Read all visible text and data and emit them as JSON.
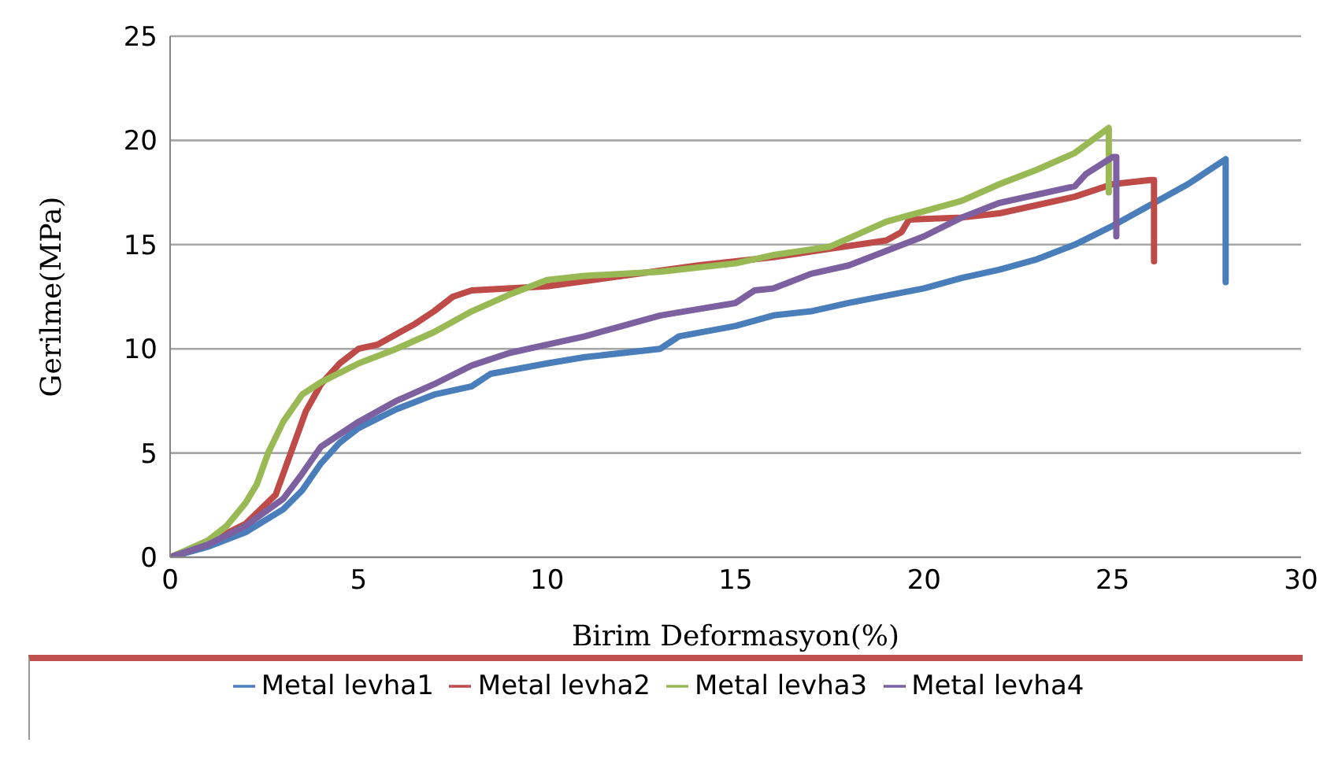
{
  "chart_data": {
    "type": "line",
    "xlabel": "Birim Deformasyon(%)",
    "ylabel": "Gerilme(MPa)",
    "xlim": [
      0,
      30
    ],
    "xticks": [
      0,
      5,
      10,
      15,
      20,
      25,
      30
    ],
    "ylim": [
      0,
      25
    ],
    "yticks": [
      0,
      5,
      10,
      15,
      20,
      25
    ],
    "grid": "y",
    "legend": "bottom",
    "marker": "none",
    "line_style": "solid",
    "series": [
      {
        "name": "Metal levha1",
        "color": "#4a7ebb",
        "x": [
          0,
          1,
          2,
          3,
          3.5,
          4,
          4.5,
          5,
          6,
          7,
          8,
          8.5,
          10,
          11,
          13,
          13.5,
          15,
          16,
          17,
          18,
          20,
          21,
          22,
          23,
          24,
          25,
          26,
          27,
          28,
          28
        ],
        "values": [
          0,
          0.5,
          1.2,
          2.3,
          3.2,
          4.5,
          5.5,
          6.2,
          7.1,
          7.8,
          8.2,
          8.8,
          9.3,
          9.6,
          10,
          10.6,
          11.1,
          11.6,
          11.8,
          12.2,
          12.9,
          13.4,
          13.8,
          14.3,
          15,
          15.9,
          16.9,
          17.9,
          19.1,
          13.2
        ]
      },
      {
        "name": "Metal levha2",
        "color": "#be4b48",
        "x": [
          0,
          1,
          2,
          2.8,
          3.2,
          3.6,
          4,
          4.5,
          5,
          5.5,
          6.5,
          7,
          7.5,
          8,
          10,
          12,
          14,
          16,
          17.5,
          19,
          19.4,
          19.6,
          21,
          22,
          23,
          24,
          25,
          26,
          26.1,
          26.1
        ],
        "values": [
          0,
          0.7,
          1.6,
          3,
          5,
          7,
          8.3,
          9.3,
          10,
          10.2,
          11.2,
          11.8,
          12.5,
          12.8,
          13,
          13.5,
          14,
          14.4,
          14.8,
          15.2,
          15.6,
          16.2,
          16.3,
          16.5,
          16.9,
          17.3,
          17.9,
          18.1,
          18.1,
          14.2
        ]
      },
      {
        "name": "Metal levha3",
        "color": "#98b954",
        "x": [
          0,
          1,
          1.5,
          2,
          2.3,
          2.6,
          3,
          3.5,
          4,
          5,
          6,
          7,
          8,
          9,
          10,
          11,
          13,
          15,
          16,
          17.5,
          18,
          19,
          20,
          21,
          22,
          23,
          24,
          24.9,
          24.9
        ],
        "values": [
          0,
          0.8,
          1.5,
          2.6,
          3.5,
          5,
          6.5,
          7.8,
          8.4,
          9.3,
          10,
          10.8,
          11.8,
          12.6,
          13.3,
          13.5,
          13.7,
          14.1,
          14.5,
          14.9,
          15.3,
          16.1,
          16.6,
          17.1,
          17.9,
          18.6,
          19.4,
          20.6,
          17.5
        ]
      },
      {
        "name": "Metal levha4",
        "color": "#7d60a0",
        "x": [
          0,
          1,
          2,
          3,
          3.5,
          4,
          5,
          6,
          7,
          8,
          9,
          10,
          11,
          12,
          13,
          14,
          15,
          15.5,
          16,
          17,
          18,
          19,
          20,
          21,
          22,
          23,
          24,
          24.3,
          25,
          25.1,
          25.1
        ],
        "values": [
          0,
          0.6,
          1.5,
          2.8,
          4,
          5.3,
          6.5,
          7.5,
          8.3,
          9.2,
          9.8,
          10.2,
          10.6,
          11.1,
          11.6,
          11.9,
          12.2,
          12.8,
          12.9,
          13.6,
          14,
          14.7,
          15.4,
          16.3,
          17,
          17.4,
          17.8,
          18.4,
          19.2,
          19.2,
          15.4
        ]
      }
    ]
  }
}
